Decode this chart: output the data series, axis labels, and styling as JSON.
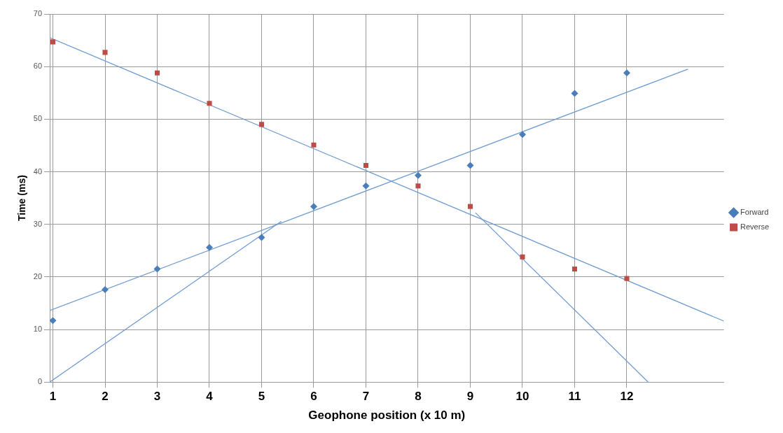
{
  "chart_data": {
    "type": "scatter",
    "xlabel": "Geophone position (x 10 m)",
    "ylabel": "Time (ms)",
    "xlim": [
      0.94,
      13.86
    ],
    "xticks": [
      1,
      2,
      3,
      4,
      5,
      6,
      7,
      8,
      9,
      10,
      11,
      12
    ],
    "ylim": [
      0,
      70
    ],
    "yticks": [
      0,
      10,
      20,
      30,
      40,
      50,
      60,
      70
    ],
    "grid": true,
    "legend": "right",
    "x": [
      1,
      2,
      3,
      4,
      5,
      6,
      7,
      8,
      9,
      10,
      11,
      12
    ],
    "series": [
      {
        "name": "Forward",
        "color": "#4a7ebb",
        "marker": "diamond",
        "values": [
          11.7,
          17.6,
          21.5,
          25.6,
          27.5,
          33.4,
          37.3,
          39.3,
          41.2,
          47.1,
          54.9,
          58.8
        ]
      },
      {
        "name": "Reverse",
        "color": "#be4b48",
        "marker": "square",
        "values": [
          64.7,
          62.7,
          58.8,
          53.0,
          49.0,
          45.1,
          41.2,
          37.3,
          33.4,
          23.8,
          21.5,
          19.7
        ]
      },
      {
        "type": "line",
        "color": "#6f9bd1",
        "marker": "none",
        "x": [
          0.94,
          13.17
        ],
        "values": [
          13.6,
          59.5
        ]
      },
      {
        "type": "line",
        "color": "#6f9bd1",
        "marker": "none",
        "x": [
          0.94,
          13.86
        ],
        "values": [
          65.5,
          11.6
        ]
      },
      {
        "type": "line",
        "color": "#6f9bd1",
        "marker": "none",
        "x": [
          0.94,
          5.38
        ],
        "values": [
          0,
          30.6
        ]
      },
      {
        "type": "line",
        "color": "#6f9bd1",
        "marker": "none",
        "x": [
          9.1,
          12.41
        ],
        "values": [
          32.2,
          0
        ]
      }
    ]
  }
}
